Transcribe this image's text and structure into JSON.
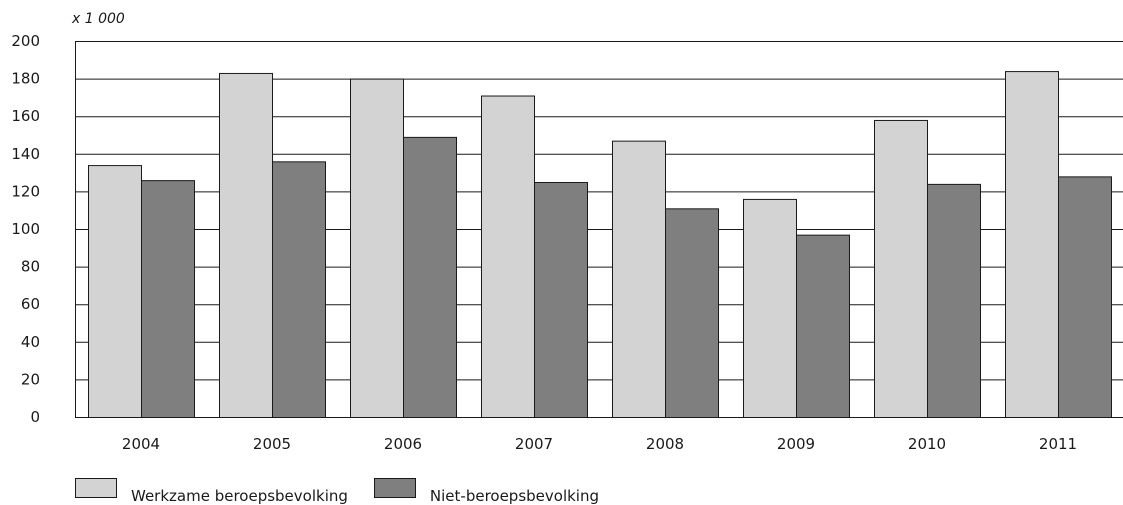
{
  "chart_data": {
    "type": "bar",
    "unit_label": "x 1 000",
    "categories": [
      "2004",
      "2005",
      "2006",
      "2007",
      "2008",
      "2009",
      "2010",
      "2011"
    ],
    "series": [
      {
        "name": "Werkzame beroepsbevolking",
        "color": "#d3d3d3",
        "values": [
          134,
          183,
          180,
          171,
          147,
          116,
          158,
          184
        ]
      },
      {
        "name": "Niet-beroepsbevolking",
        "color": "#7f7f7f",
        "values": [
          126,
          136,
          149,
          125,
          111,
          97,
          124,
          128
        ]
      }
    ],
    "ylim": [
      0,
      200
    ],
    "yticks": [
      0,
      20,
      40,
      60,
      80,
      100,
      120,
      140,
      160,
      180,
      200
    ],
    "grid": true,
    "legend_position": "bottom-left"
  }
}
